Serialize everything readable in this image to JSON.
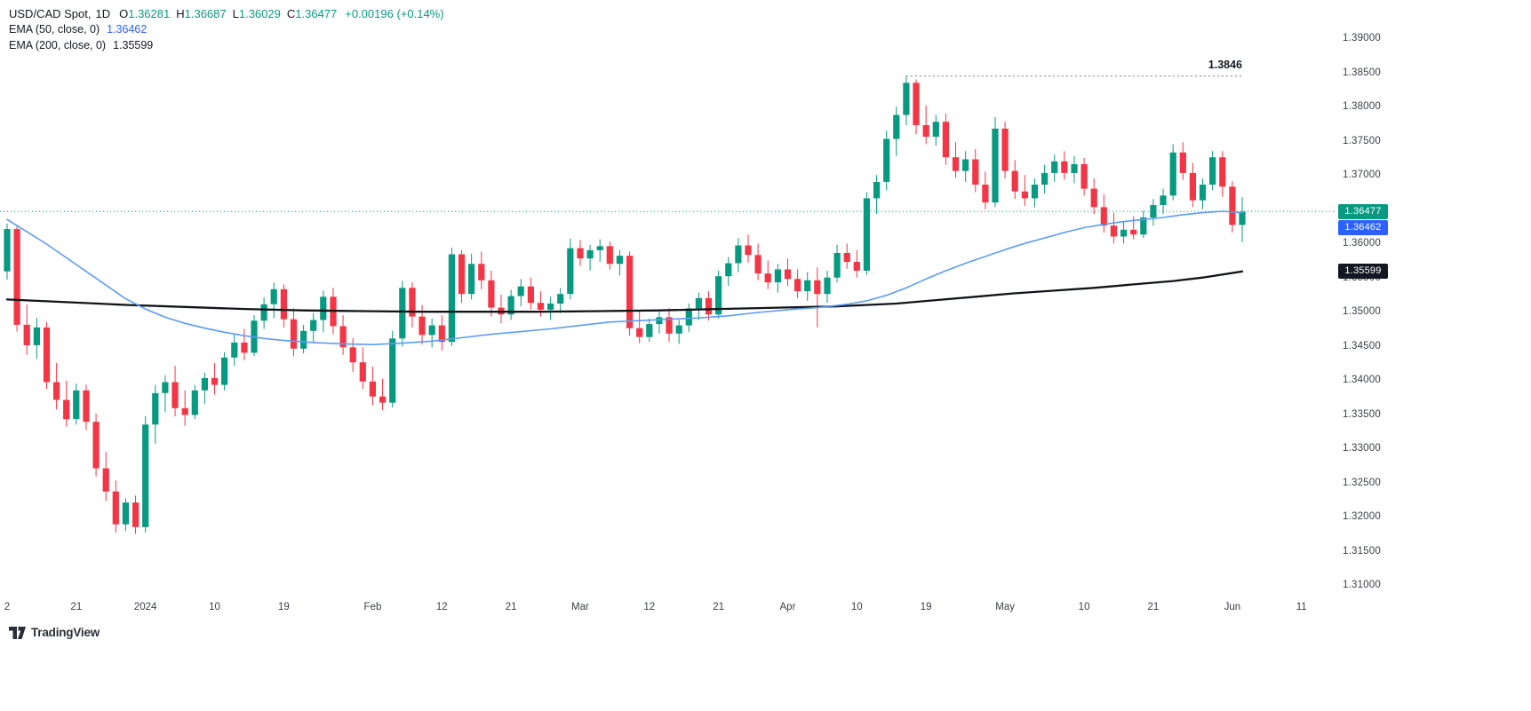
{
  "header": {
    "symbol": "USD/CAD Spot,",
    "timeframe": "1D",
    "ohlc": [
      {
        "label": "O",
        "value": "1.36281"
      },
      {
        "label": "H",
        "value": "1.36687"
      },
      {
        "label": "L",
        "value": "1.36029"
      },
      {
        "label": "C",
        "value": "1.36477"
      }
    ],
    "change": "+0.00196 (+0.14%)"
  },
  "indicators": [
    {
      "label": "EMA (50, close, 0)",
      "value": "1.36462",
      "color": "#2962FF"
    },
    {
      "label": "EMA (200, close, 0)",
      "value": "1.35599",
      "color": "#131722"
    }
  ],
  "price_labels": {
    "last": {
      "text": "1.36477",
      "price": 1.36477,
      "bg": "#089981"
    },
    "ema50": {
      "text": "1.36462",
      "price": 1.36462,
      "bg": "#2962FF"
    },
    "ema200": {
      "text": "1.35599",
      "price": 1.35599,
      "bg": "#131722"
    }
  },
  "annotation": {
    "text": "1.3846",
    "price": 1.3846
  },
  "footer": {
    "brand": "TradingView"
  },
  "chart_data": {
    "type": "candlestick",
    "title": "USD/CAD Spot",
    "interval": "1D",
    "up_color": "#089981",
    "down_color": "#F23645",
    "ema50_color": "#5B9CF6",
    "ema200_color": "#101418",
    "last_price_line_color": "#089981",
    "high_line_color": "#787B86",
    "last_price": 1.36477,
    "high_line": 1.3846,
    "high_line_start_i": 91,
    "y_axis": {
      "min": 1.31,
      "max": 1.39,
      "step": 0.005,
      "decimals": 5
    },
    "x_ticks": [
      {
        "label": "2",
        "i": 0
      },
      {
        "label": "21",
        "i": 7
      },
      {
        "label": "2024",
        "i": 14
      },
      {
        "label": "10",
        "i": 21
      },
      {
        "label": "19",
        "i": 28
      },
      {
        "label": "Feb",
        "i": 37
      },
      {
        "label": "12",
        "i": 44
      },
      {
        "label": "21",
        "i": 51
      },
      {
        "label": "Mar",
        "i": 58
      },
      {
        "label": "12",
        "i": 65
      },
      {
        "label": "21",
        "i": 72
      },
      {
        "label": "Apr",
        "i": 79
      },
      {
        "label": "10",
        "i": 86
      },
      {
        "label": "19",
        "i": 93
      },
      {
        "label": "May",
        "i": 101
      },
      {
        "label": "10",
        "i": 109
      },
      {
        "label": "21",
        "i": 116
      },
      {
        "label": "Jun",
        "i": 124
      },
      {
        "label": "11",
        "i": 131
      }
    ],
    "candles": [
      [
        1.356,
        1.363,
        1.3548,
        1.3622
      ],
      [
        1.3622,
        1.3628,
        1.3472,
        1.3482
      ],
      [
        1.3482,
        1.3512,
        1.3438,
        1.3452
      ],
      [
        1.3452,
        1.3492,
        1.3432,
        1.3478
      ],
      [
        1.3478,
        1.3486,
        1.3388,
        1.3398
      ],
      [
        1.3398,
        1.3426,
        1.3358,
        1.3372
      ],
      [
        1.3372,
        1.34,
        1.3333,
        1.3344
      ],
      [
        1.3344,
        1.3396,
        1.3336,
        1.3386
      ],
      [
        1.3386,
        1.3394,
        1.3328,
        1.334
      ],
      [
        1.334,
        1.3352,
        1.326,
        1.3272
      ],
      [
        1.3272,
        1.3296,
        1.3224,
        1.3238
      ],
      [
        1.3238,
        1.3254,
        1.3178,
        1.319
      ],
      [
        1.319,
        1.3228,
        1.318,
        1.3222
      ],
      [
        1.3222,
        1.3232,
        1.3176,
        1.3186
      ],
      [
        1.3186,
        1.3348,
        1.3178,
        1.3336
      ],
      [
        1.3336,
        1.3394,
        1.3308,
        1.3382
      ],
      [
        1.3382,
        1.3408,
        1.3354,
        1.3398
      ],
      [
        1.3398,
        1.3422,
        1.3348,
        1.336
      ],
      [
        1.336,
        1.3386,
        1.3334,
        1.335
      ],
      [
        1.335,
        1.3394,
        1.3344,
        1.3386
      ],
      [
        1.3386,
        1.3412,
        1.3366,
        1.3404
      ],
      [
        1.3404,
        1.3426,
        1.338,
        1.3394
      ],
      [
        1.3394,
        1.3442,
        1.3386,
        1.3434
      ],
      [
        1.3434,
        1.3468,
        1.3422,
        1.3456
      ],
      [
        1.3456,
        1.3476,
        1.343,
        1.3441
      ],
      [
        1.3441,
        1.3496,
        1.3436,
        1.3488
      ],
      [
        1.3488,
        1.3522,
        1.3476,
        1.3512
      ],
      [
        1.3512,
        1.3544,
        1.3492,
        1.3534
      ],
      [
        1.3534,
        1.3541,
        1.3478,
        1.349
      ],
      [
        1.349,
        1.3506,
        1.3436,
        1.3447
      ],
      [
        1.3447,
        1.3482,
        1.344,
        1.3473
      ],
      [
        1.3473,
        1.3499,
        1.3456,
        1.3489
      ],
      [
        1.3489,
        1.3532,
        1.3471,
        1.3523
      ],
      [
        1.3523,
        1.3536,
        1.3468,
        1.348
      ],
      [
        1.348,
        1.3496,
        1.3438,
        1.3449
      ],
      [
        1.3449,
        1.3463,
        1.3413,
        1.3427
      ],
      [
        1.3427,
        1.3449,
        1.3388,
        1.3399
      ],
      [
        1.3399,
        1.3421,
        1.3364,
        1.3377
      ],
      [
        1.3377,
        1.3403,
        1.3357,
        1.3368
      ],
      [
        1.3368,
        1.3473,
        1.3361,
        1.3462
      ],
      [
        1.3462,
        1.3546,
        1.345,
        1.3536
      ],
      [
        1.3536,
        1.3544,
        1.3478,
        1.3494
      ],
      [
        1.3494,
        1.3511,
        1.3453,
        1.3467
      ],
      [
        1.3467,
        1.3491,
        1.3449,
        1.3481
      ],
      [
        1.3481,
        1.3496,
        1.3444,
        1.3457
      ],
      [
        1.3457,
        1.3595,
        1.3451,
        1.3585
      ],
      [
        1.3585,
        1.3591,
        1.3514,
        1.3527
      ],
      [
        1.3527,
        1.3586,
        1.3519,
        1.3571
      ],
      [
        1.3571,
        1.3589,
        1.3534,
        1.3547
      ],
      [
        1.3547,
        1.3561,
        1.3494,
        1.3507
      ],
      [
        1.3507,
        1.3526,
        1.3484,
        1.3497
      ],
      [
        1.3497,
        1.3533,
        1.3489,
        1.3524
      ],
      [
        1.3524,
        1.3549,
        1.3509,
        1.3538
      ],
      [
        1.3538,
        1.3551,
        1.3504,
        1.3514
      ],
      [
        1.3514,
        1.3531,
        1.3494,
        1.3504
      ],
      [
        1.3504,
        1.3523,
        1.3489,
        1.3513
      ],
      [
        1.3513,
        1.3536,
        1.3499,
        1.3527
      ],
      [
        1.3527,
        1.3608,
        1.3519,
        1.3594
      ],
      [
        1.3594,
        1.3606,
        1.3568,
        1.3579
      ],
      [
        1.3579,
        1.3599,
        1.3561,
        1.3591
      ],
      [
        1.3591,
        1.3607,
        1.3574,
        1.3597
      ],
      [
        1.3597,
        1.3604,
        1.3563,
        1.3571
      ],
      [
        1.3571,
        1.3591,
        1.3554,
        1.3583
      ],
      [
        1.3583,
        1.3589,
        1.3466,
        1.3477
      ],
      [
        1.3477,
        1.3503,
        1.3455,
        1.3464
      ],
      [
        1.3464,
        1.3491,
        1.3457,
        1.3483
      ],
      [
        1.3483,
        1.3501,
        1.3469,
        1.3493
      ],
      [
        1.3493,
        1.3506,
        1.3457,
        1.3469
      ],
      [
        1.3469,
        1.3489,
        1.3454,
        1.3481
      ],
      [
        1.3481,
        1.3513,
        1.3471,
        1.3506
      ],
      [
        1.3506,
        1.3529,
        1.3489,
        1.3521
      ],
      [
        1.3521,
        1.3531,
        1.3488,
        1.3497
      ],
      [
        1.3497,
        1.3561,
        1.3491,
        1.3553
      ],
      [
        1.3553,
        1.3581,
        1.3539,
        1.3572
      ],
      [
        1.3572,
        1.3609,
        1.3559,
        1.3598
      ],
      [
        1.3598,
        1.3614,
        1.3573,
        1.3584
      ],
      [
        1.3584,
        1.3601,
        1.3547,
        1.3557
      ],
      [
        1.3557,
        1.3576,
        1.3534,
        1.3544
      ],
      [
        1.3544,
        1.3571,
        1.3529,
        1.3563
      ],
      [
        1.3563,
        1.3579,
        1.3539,
        1.3549
      ],
      [
        1.3549,
        1.3563,
        1.3521,
        1.3531
      ],
      [
        1.3531,
        1.3559,
        1.3517,
        1.3547
      ],
      [
        1.3547,
        1.3566,
        1.3478,
        1.3527
      ],
      [
        1.3527,
        1.3561,
        1.3514,
        1.3551
      ],
      [
        1.3551,
        1.3599,
        1.3544,
        1.3587
      ],
      [
        1.3587,
        1.3601,
        1.3564,
        1.3574
      ],
      [
        1.3574,
        1.3591,
        1.3551,
        1.3561
      ],
      [
        1.3561,
        1.3676,
        1.3555,
        1.3667
      ],
      [
        1.3667,
        1.3701,
        1.3644,
        1.3691
      ],
      [
        1.3691,
        1.3766,
        1.3679,
        1.3754
      ],
      [
        1.3754,
        1.3801,
        1.3729,
        1.3789
      ],
      [
        1.3789,
        1.3846,
        1.3774,
        1.3836
      ],
      [
        1.3836,
        1.3841,
        1.3761,
        1.3774
      ],
      [
        1.3774,
        1.3803,
        1.3746,
        1.3757
      ],
      [
        1.3757,
        1.3789,
        1.3744,
        1.3779
      ],
      [
        1.3779,
        1.3791,
        1.3716,
        1.3727
      ],
      [
        1.3727,
        1.3749,
        1.3697,
        1.3707
      ],
      [
        1.3707,
        1.3736,
        1.3691,
        1.3724
      ],
      [
        1.3724,
        1.3739,
        1.3676,
        1.3687
      ],
      [
        1.3687,
        1.3706,
        1.3651,
        1.3661
      ],
      [
        1.3661,
        1.3786,
        1.3654,
        1.3769
      ],
      [
        1.3769,
        1.3779,
        1.3696,
        1.3707
      ],
      [
        1.3707,
        1.3723,
        1.3666,
        1.3677
      ],
      [
        1.3677,
        1.3701,
        1.3656,
        1.3667
      ],
      [
        1.3667,
        1.3696,
        1.3654,
        1.3687
      ],
      [
        1.3687,
        1.3716,
        1.3674,
        1.3704
      ],
      [
        1.3704,
        1.3731,
        1.3691,
        1.3721
      ],
      [
        1.3721,
        1.3736,
        1.3694,
        1.3704
      ],
      [
        1.3704,
        1.3729,
        1.3689,
        1.3717
      ],
      [
        1.3717,
        1.3726,
        1.3671,
        1.3681
      ],
      [
        1.3681,
        1.3696,
        1.3644,
        1.3654
      ],
      [
        1.3654,
        1.3673,
        1.3617,
        1.3627
      ],
      [
        1.3627,
        1.3646,
        1.3601,
        1.3611
      ],
      [
        1.3611,
        1.3633,
        1.3601,
        1.3621
      ],
      [
        1.3621,
        1.3641,
        1.3607,
        1.3614
      ],
      [
        1.3614,
        1.3649,
        1.3609,
        1.3639
      ],
      [
        1.3639,
        1.3666,
        1.3627,
        1.3657
      ],
      [
        1.3657,
        1.3681,
        1.3644,
        1.3671
      ],
      [
        1.3671,
        1.3746,
        1.3664,
        1.3734
      ],
      [
        1.3734,
        1.3749,
        1.3694,
        1.3704
      ],
      [
        1.3704,
        1.3719,
        1.3654,
        1.3664
      ],
      [
        1.3664,
        1.3696,
        1.3651,
        1.3687
      ],
      [
        1.3687,
        1.3736,
        1.3679,
        1.3727
      ],
      [
        1.3727,
        1.3736,
        1.3669,
        1.3684
      ],
      [
        1.3684,
        1.3692,
        1.3617,
        1.3628
      ],
      [
        1.36281,
        1.36687,
        1.36029,
        1.36477
      ]
    ],
    "ema50": [
      [
        0,
        1.3636
      ],
      [
        2,
        1.3618
      ],
      [
        4,
        1.36
      ],
      [
        6,
        1.358
      ],
      [
        8,
        1.356
      ],
      [
        10,
        1.354
      ],
      [
        12,
        1.352
      ],
      [
        14,
        1.3505
      ],
      [
        16,
        1.3493
      ],
      [
        18,
        1.3484
      ],
      [
        20,
        1.3477
      ],
      [
        22,
        1.3471
      ],
      [
        24,
        1.3466
      ],
      [
        26,
        1.3462
      ],
      [
        28,
        1.3459
      ],
      [
        31,
        1.3456
      ],
      [
        34,
        1.3454
      ],
      [
        37,
        1.3453
      ],
      [
        40,
        1.3455
      ],
      [
        43,
        1.3458
      ],
      [
        46,
        1.3463
      ],
      [
        49,
        1.3468
      ],
      [
        52,
        1.3472
      ],
      [
        55,
        1.3476
      ],
      [
        58,
        1.3481
      ],
      [
        61,
        1.3486
      ],
      [
        64,
        1.3488
      ],
      [
        67,
        1.349
      ],
      [
        70,
        1.3492
      ],
      [
        73,
        1.3495
      ],
      [
        76,
        1.35
      ],
      [
        79,
        1.3504
      ],
      [
        82,
        1.3507
      ],
      [
        85,
        1.3512
      ],
      [
        87,
        1.3517
      ],
      [
        89,
        1.3525
      ],
      [
        91,
        1.3536
      ],
      [
        93,
        1.3549
      ],
      [
        95,
        1.3561
      ],
      [
        97,
        1.3572
      ],
      [
        99,
        1.3582
      ],
      [
        101,
        1.3592
      ],
      [
        103,
        1.3601
      ],
      [
        105,
        1.3609
      ],
      [
        107,
        1.3617
      ],
      [
        109,
        1.3624
      ],
      [
        111,
        1.3629
      ],
      [
        113,
        1.3633
      ],
      [
        115,
        1.3636
      ],
      [
        117,
        1.3639
      ],
      [
        119,
        1.3643
      ],
      [
        121,
        1.3646
      ],
      [
        123,
        1.3648
      ],
      [
        125,
        1.3646
      ]
    ],
    "ema200": [
      [
        0,
        1.3519
      ],
      [
        6,
        1.3515
      ],
      [
        12,
        1.3511
      ],
      [
        18,
        1.3508
      ],
      [
        24,
        1.3505
      ],
      [
        30,
        1.3503
      ],
      [
        36,
        1.3502
      ],
      [
        42,
        1.3501
      ],
      [
        48,
        1.3501
      ],
      [
        54,
        1.3501
      ],
      [
        60,
        1.3502
      ],
      [
        66,
        1.3503
      ],
      [
        72,
        1.3505
      ],
      [
        78,
        1.3507
      ],
      [
        84,
        1.3509
      ],
      [
        90,
        1.3513
      ],
      [
        94,
        1.3518
      ],
      [
        98,
        1.3523
      ],
      [
        102,
        1.3528
      ],
      [
        106,
        1.3532
      ],
      [
        110,
        1.3536
      ],
      [
        114,
        1.3541
      ],
      [
        118,
        1.3546
      ],
      [
        121,
        1.3551
      ],
      [
        125,
        1.356
      ]
    ]
  }
}
